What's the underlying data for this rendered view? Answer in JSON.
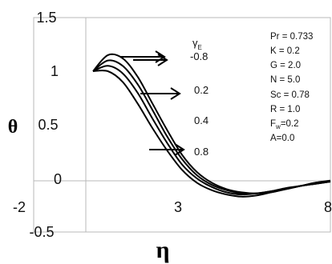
{
  "chart_data": {
    "type": "line",
    "xlabel": "η",
    "ylabel": "θ",
    "xlim": [
      -2,
      8
    ],
    "ylim": [
      -0.5,
      1.5
    ],
    "x_ticks": [
      "-2",
      "3",
      "8"
    ],
    "y_ticks": [
      "-0.5",
      "0",
      "0.5",
      "1",
      "1.5"
    ],
    "legend_title": "γ",
    "legend_title_sub": "E",
    "series": [
      {
        "name": "-0.8",
        "x": [
          0,
          0.5,
          1,
          1.5,
          2,
          2.5,
          3,
          3.5,
          4,
          4.5,
          5,
          5.5,
          6,
          6.5,
          7,
          7.5,
          8
        ],
        "y": [
          1.0,
          1.15,
          1.12,
          0.95,
          0.7,
          0.45,
          0.22,
          0.06,
          -0.04,
          -0.1,
          -0.13,
          -0.14,
          -0.13,
          -0.1,
          -0.07,
          -0.05,
          -0.03
        ]
      },
      {
        "name": "0.2",
        "x": [
          0,
          0.5,
          1,
          1.5,
          2,
          2.5,
          3,
          3.5,
          4,
          4.5,
          5,
          5.5,
          6,
          6.5,
          7,
          7.5,
          8
        ],
        "y": [
          1.0,
          1.1,
          1.05,
          0.88,
          0.64,
          0.39,
          0.18,
          0.03,
          -0.06,
          -0.11,
          -0.14,
          -0.14,
          -0.12,
          -0.1,
          -0.07,
          -0.05,
          -0.03
        ]
      },
      {
        "name": "0.4",
        "x": [
          0,
          0.5,
          1,
          1.5,
          2,
          2.5,
          3,
          3.5,
          4,
          4.5,
          5,
          5.5,
          6,
          6.5,
          7,
          7.5,
          8
        ],
        "y": [
          1.0,
          1.05,
          0.98,
          0.8,
          0.56,
          0.33,
          0.13,
          0.0,
          -0.08,
          -0.13,
          -0.15,
          -0.14,
          -0.12,
          -0.09,
          -0.07,
          -0.04,
          -0.03
        ]
      },
      {
        "name": "0.8",
        "x": [
          0,
          0.5,
          1,
          1.5,
          2,
          2.5,
          3,
          3.5,
          4,
          4.5,
          5,
          5.5,
          6,
          6.5,
          7,
          7.5,
          8
        ],
        "y": [
          1.0,
          1.0,
          0.9,
          0.7,
          0.47,
          0.26,
          0.08,
          -0.04,
          -0.11,
          -0.15,
          -0.17,
          -0.16,
          -0.13,
          -0.1,
          -0.07,
          -0.04,
          -0.02
        ]
      }
    ],
    "parameters": [
      "Pr = 0.733",
      "K = 0.2",
      "G = 2.0",
      "N = 5.0",
      "Sc = 0.78",
      "R = 1.0",
      "F",
      "=0.2",
      "A=0.0"
    ],
    "parameter_sub": "w"
  }
}
